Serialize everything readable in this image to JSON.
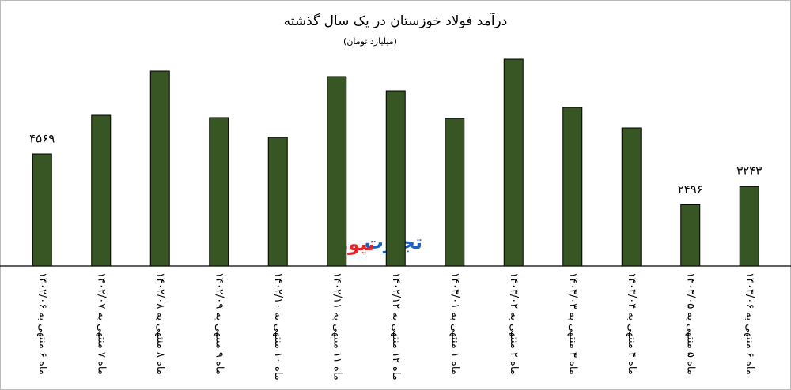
{
  "chart_data": {
    "type": "bar",
    "title": "درآمد فولاد خوزستان در یک سال گذشته",
    "subtitle": "(میلیارد تومان)",
    "categories": [
      "ماه ۶ منتهی به ۱۴۰۲/۰۶",
      "ماه ۷ منتهی به ۱۴۰۲/۰۷",
      "ماه ۸ منتهی به ۱۴۰۲/۰۸",
      "ماه ۹ منتهی به ۱۴۰۲/۰۹",
      "ماه ۱۰ منتهی به ۱۴۰۲/۱۰",
      "ماه ۱۱ منتهی به ۱۴۰۲/۱۱",
      "ماه ۱۲ منتهی به ۱۴۰۲/۱۲",
      "ماه ۱ منتهی به ۱۴۰۳/۰۱",
      "ماه ۲ منتهی به ۱۴۰۳/۰۲",
      "ماه ۳ منتهی به ۱۴۰۳/۰۳",
      "ماه ۴ منتهی به ۱۴۰۳/۰۴",
      "ماه ۵ منتهی به ۱۴۰۳/۰۵",
      "ماه ۶ منتهی به ۱۴۰۳/۰۶"
    ],
    "values": [
      4569,
      6146,
      7948,
      6050,
      5245,
      7723,
      7144,
      6017,
      8431,
      6468,
      5631,
      2496,
      3243
    ],
    "value_labels": [
      "۴۵۶۹",
      null,
      null,
      null,
      null,
      null,
      null,
      null,
      null,
      null,
      null,
      "۲۴۹۶",
      "۳۲۴۳"
    ],
    "color": "#375623",
    "watermark": [
      "تجارت",
      "نیوز"
    ]
  }
}
